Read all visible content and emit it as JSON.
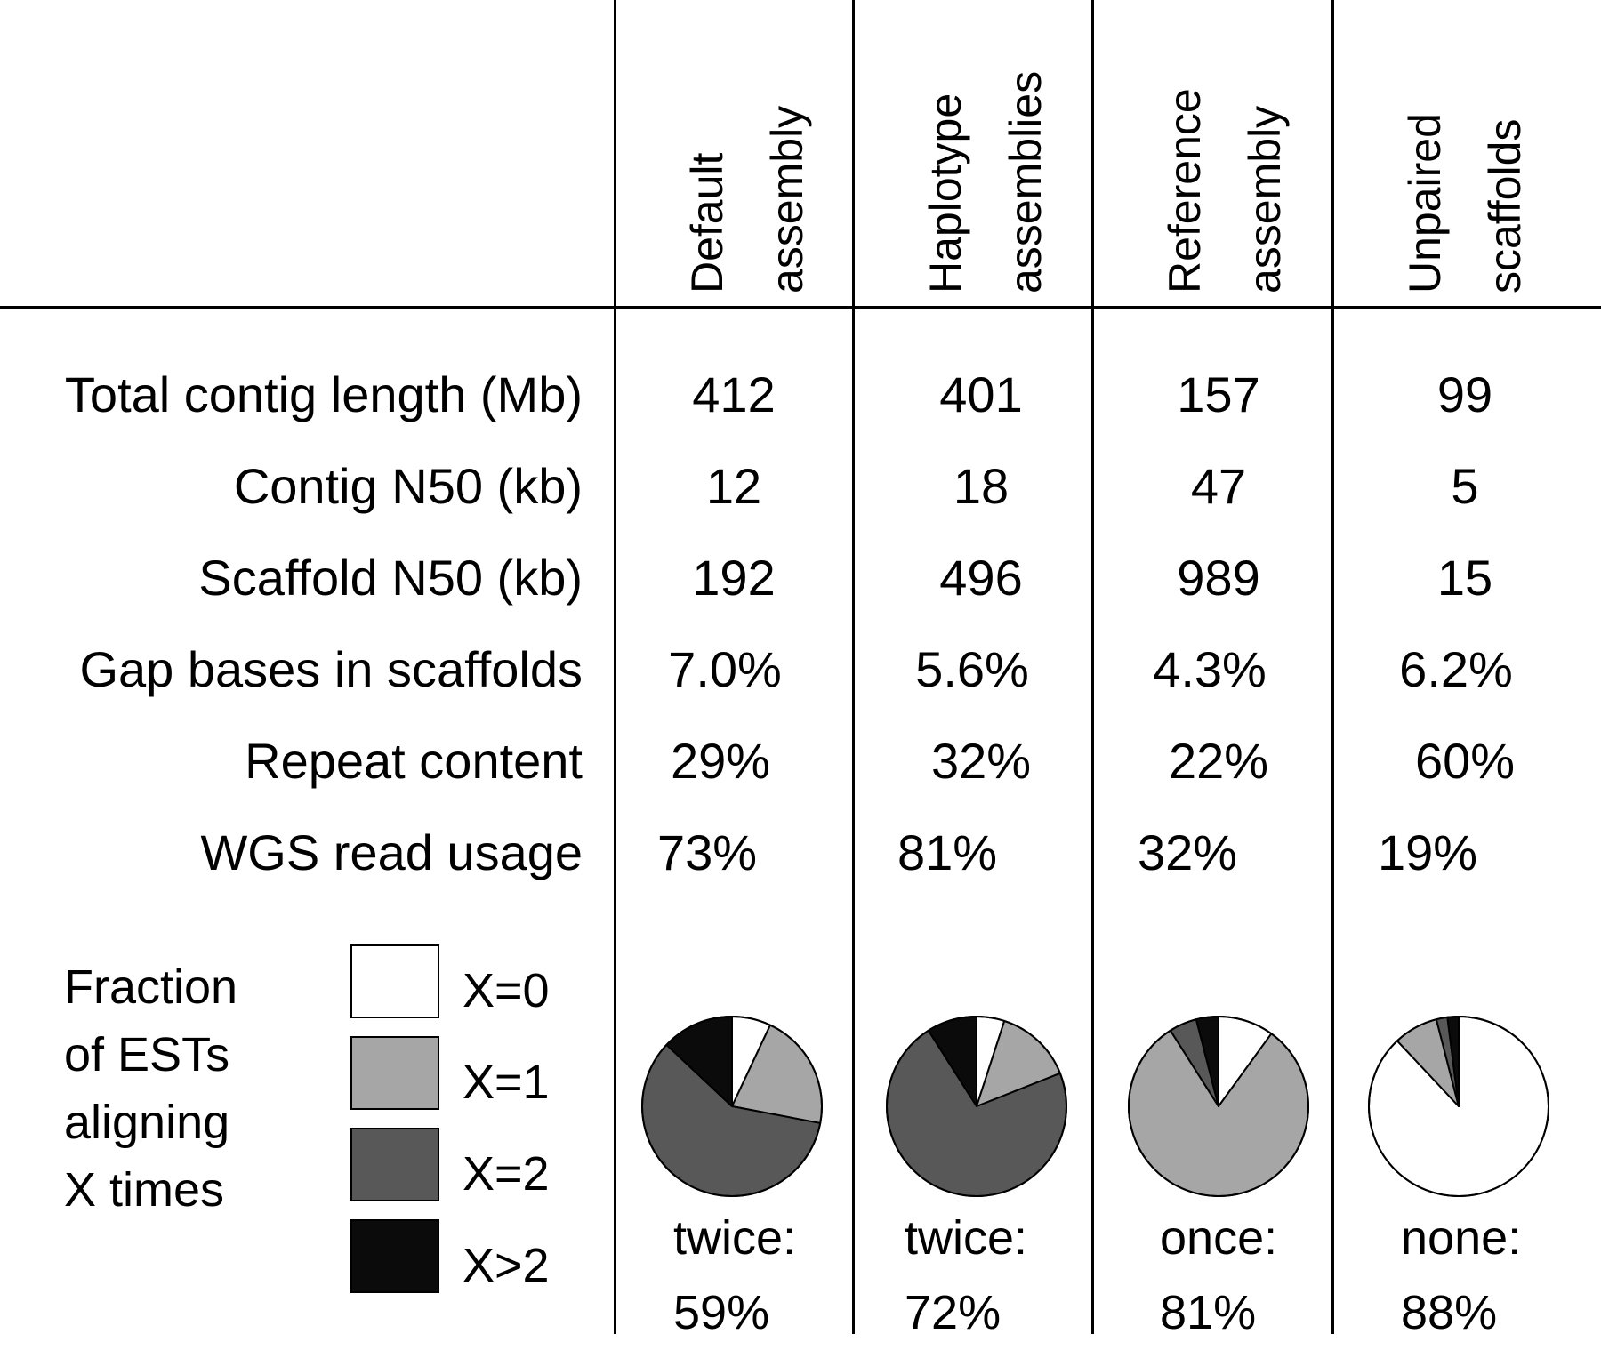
{
  "chart_data": {
    "type": "table",
    "columns": [
      {
        "line1": "Default",
        "line2": "assembly"
      },
      {
        "line1": "Haplotype",
        "line2": "assemblies"
      },
      {
        "line1": "Reference",
        "line2": "assembly"
      },
      {
        "line1": "Unpaired",
        "line2": "scaffolds"
      }
    ],
    "rows": [
      {
        "label": "Total contig length (Mb)",
        "values": [
          "412",
          "401",
          "157",
          "99"
        ]
      },
      {
        "label": "Contig N50 (kb)",
        "values": [
          "12",
          "18",
          "47",
          "5"
        ]
      },
      {
        "label": "Scaffold N50 (kb)",
        "values": [
          "192",
          "496",
          "989",
          "15"
        ]
      },
      {
        "label": "Gap bases in scaffolds",
        "values": [
          "7.0%",
          "5.6%",
          "4.3%",
          "6.2%"
        ]
      },
      {
        "label": "Repeat content",
        "values": [
          "29%",
          "32%",
          "22%",
          "60%"
        ]
      },
      {
        "label": "WGS read usage",
        "values": [
          "73%",
          "81%",
          "32%",
          "19%"
        ]
      }
    ],
    "legend": {
      "title": "Fraction\nof ESTs\naligning\nX times",
      "items": [
        {
          "label": "X=0",
          "color": "#ffffff"
        },
        {
          "label": "X=1",
          "color": "#a6a6a6"
        },
        {
          "label": "X=2",
          "color": "#585858"
        },
        {
          "label": "X>2",
          "color": "#0b0b0b"
        }
      ]
    },
    "pies": [
      {
        "caption": "twice:\n59%",
        "fractions": [
          0.07,
          0.21,
          0.59,
          0.13
        ]
      },
      {
        "caption": "twice:\n72%",
        "fractions": [
          0.05,
          0.14,
          0.72,
          0.09
        ]
      },
      {
        "caption": "once:\n81%",
        "fractions": [
          0.1,
          0.81,
          0.05,
          0.04
        ]
      },
      {
        "caption": "none:\n88%",
        "fractions": [
          0.88,
          0.08,
          0.02,
          0.02
        ]
      }
    ]
  }
}
